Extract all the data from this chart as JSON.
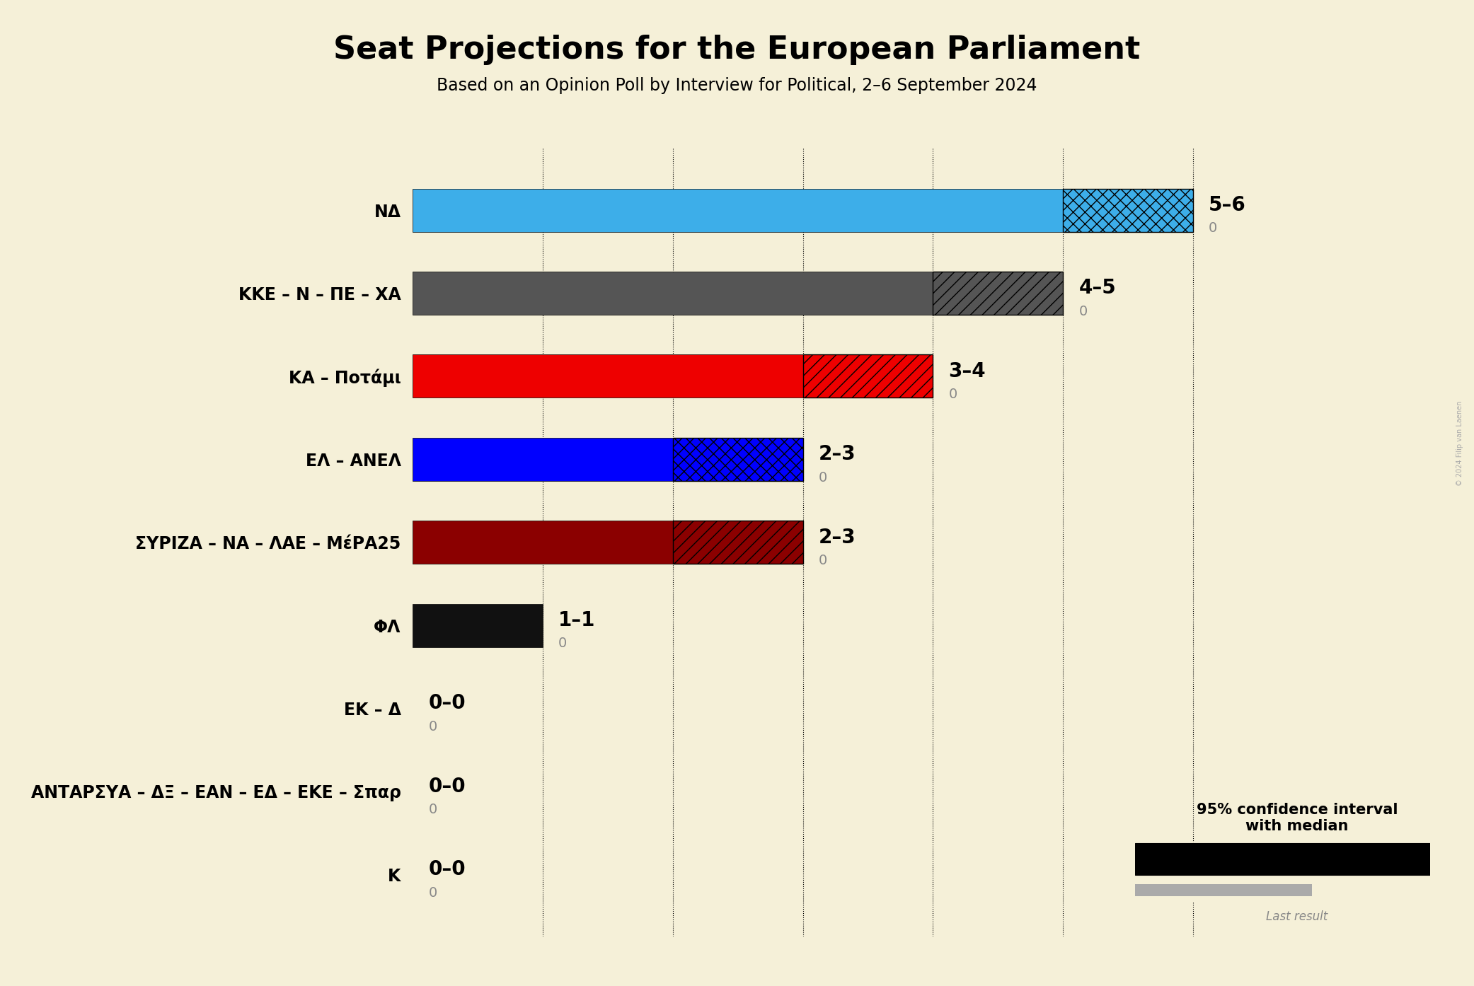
{
  "title": "Seat Projections for the European Parliament",
  "subtitle": "Based on an Opinion Poll by Interview for Political, 2–6 September 2024",
  "background_color": "#f5f0d8",
  "parties": [
    {
      "name": "NΔ",
      "low": 5,
      "high": 6,
      "color": "#3daee9",
      "hatch": "xx",
      "label": "5–6",
      "last": 0
    },
    {
      "name": "ΚΚΕ – N – ΠΕ – ΧΑ",
      "low": 4,
      "high": 5,
      "color": "#555555",
      "hatch": "//",
      "label": "4–5",
      "last": 0
    },
    {
      "name": "ΚΑ – Ποτάμι",
      "low": 3,
      "high": 4,
      "color": "#ee0000",
      "hatch": "//",
      "label": "3–4",
      "last": 0
    },
    {
      "name": "ΕΛ – ΑΝΕΛ",
      "low": 2,
      "high": 3,
      "color": "#0000ff",
      "hatch": "xx",
      "label": "2–3",
      "last": 0
    },
    {
      "name": "ΣΥΡΙΖΑ – ΝΑ – ΛΑΕ – ΜέΡΑ25",
      "low": 2,
      "high": 3,
      "color": "#8b0000",
      "hatch": "//",
      "label": "2–3",
      "last": 0
    },
    {
      "name": "ΦΛ",
      "low": 1,
      "high": 1,
      "color": "#111111",
      "hatch": "xx",
      "label": "1–1",
      "last": 0
    },
    {
      "name": "ΕΚ – Δ",
      "low": 0,
      "high": 0,
      "color": "#555555",
      "hatch": "//",
      "label": "0–0",
      "last": 0
    },
    {
      "name": "ΑΝΤΑΡΣΥΑ – ΔΞ – ΕΑΝ – ΕΔ – ΕΚΕ – Σπαρ",
      "low": 0,
      "high": 0,
      "color": "#555555",
      "hatch": "//",
      "label": "0–0",
      "last": 0
    },
    {
      "name": "Κ",
      "low": 0,
      "high": 0,
      "color": "#555555",
      "hatch": "//",
      "label": "0–0",
      "last": 0
    }
  ],
  "xlim_max": 6.8,
  "gridlines_x": [
    1,
    2,
    3,
    4,
    5,
    6
  ],
  "legend_text": "95% confidence interval\nwith median",
  "legend_last": "Last result",
  "copyright": "© 2024 Filip van Laenen",
  "title_fontsize": 32,
  "subtitle_fontsize": 17,
  "party_fontsize": 17,
  "label_fontsize": 20,
  "label_small_fontsize": 14,
  "legend_fontsize": 15
}
